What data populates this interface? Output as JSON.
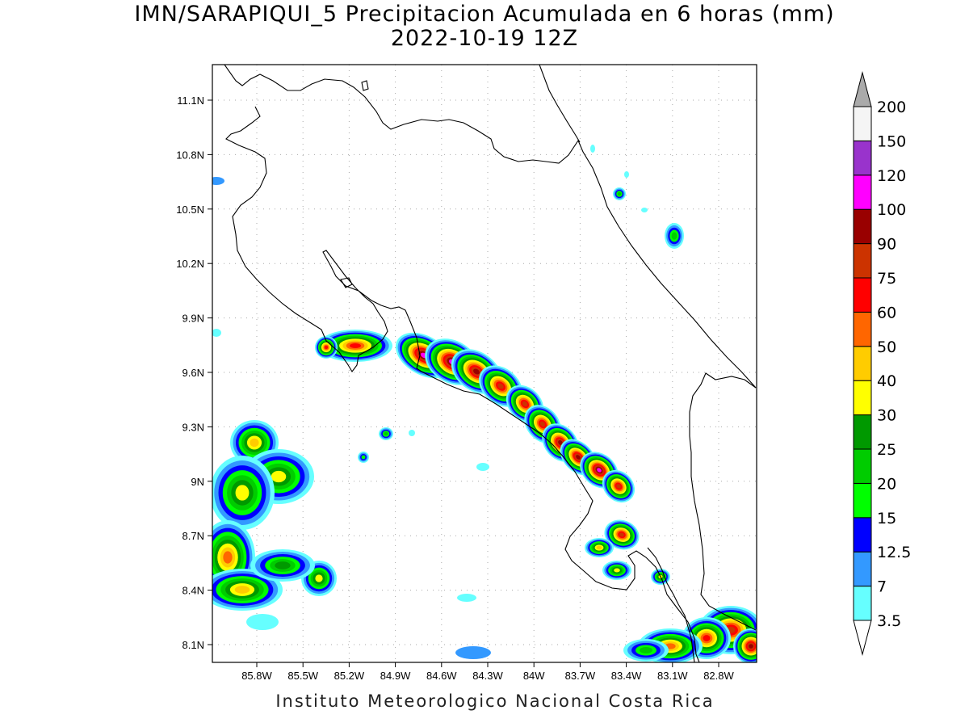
{
  "title_line1": "IMN/SARAPIQUI_5 Precipitacion Acumulada en 6 horas (mm)",
  "title_line2": "2022-10-19 12Z",
  "footer": "Instituto Meteorologico Nacional Costa Rica",
  "map": {
    "lon_range": [
      -86.05,
      -83.05
    ],
    "lat_range": [
      8.0,
      11.3
    ],
    "lon_ticks": [
      {
        "value": -85.8,
        "label": "85.8W"
      },
      {
        "value": -85.5,
        "label": "85.5W"
      },
      {
        "value": -85.2,
        "label": "85.2W"
      },
      {
        "value": -84.9,
        "label": "84.9W"
      },
      {
        "value": -84.6,
        "label": "84.6W"
      },
      {
        "value": -84.3,
        "label": "84.3W"
      },
      {
        "value": -84.0,
        "label": "84W"
      },
      {
        "value": -83.7,
        "label": "83.7W"
      },
      {
        "value": -83.4,
        "label": "83.4W"
      },
      {
        "value": -83.1,
        "label": "83.1W"
      },
      {
        "value": -82.8,
        "label": "82.8W"
      }
    ],
    "lat_ticks": [
      {
        "value": 11.1,
        "label": "11.1N"
      },
      {
        "value": 10.8,
        "label": "10.8N"
      },
      {
        "value": 10.5,
        "label": "10.5N"
      },
      {
        "value": 10.2,
        "label": "10.2N"
      },
      {
        "value": 9.9,
        "label": "9.9N"
      },
      {
        "value": 9.6,
        "label": "9.6N"
      },
      {
        "value": 9.3,
        "label": "9.3N"
      },
      {
        "value": 9.0,
        "label": "9N"
      },
      {
        "value": 8.7,
        "label": "8.7N"
      },
      {
        "value": 8.4,
        "label": "8.4N"
      },
      {
        "value": 8.1,
        "label": "8.1N"
      }
    ]
  },
  "colorbar": {
    "levels": [
      {
        "label": "3.5",
        "color": "#66ffff"
      },
      {
        "label": "7",
        "color": "#3399ff"
      },
      {
        "label": "12.5",
        "color": "#0000ff"
      },
      {
        "label": "15",
        "color": "#00ff00"
      },
      {
        "label": "20",
        "color": "#00cc00"
      },
      {
        "label": "25",
        "color": "#009900"
      },
      {
        "label": "30",
        "color": "#ffff00"
      },
      {
        "label": "40",
        "color": "#ffcc00"
      },
      {
        "label": "50",
        "color": "#ff6600"
      },
      {
        "label": "60",
        "color": "#ff0000"
      },
      {
        "label": "75",
        "color": "#cc3300"
      },
      {
        "label": "90",
        "color": "#990000"
      },
      {
        "label": "100",
        "color": "#ff00ff"
      },
      {
        "label": "120",
        "color": "#9933cc"
      },
      {
        "label": "150",
        "color": "#f5f5f5"
      },
      {
        "label": "200",
        "color": "#aaaaaa"
      }
    ]
  }
}
